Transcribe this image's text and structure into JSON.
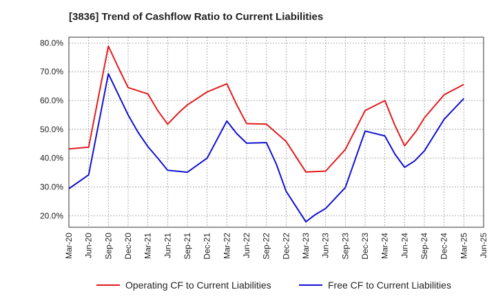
{
  "chart_data": {
    "type": "line",
    "title": "[3836]  Trend of Cashflow Ratio to Current Liabilities",
    "x_ticks": [
      "Mar-20",
      "Jun-20",
      "Sep-20",
      "Dec-20",
      "Mar-21",
      "Jun-21",
      "Sep-21",
      "Dec-21",
      "Mar-22",
      "Jun-22",
      "Sep-22",
      "Dec-22",
      "Mar-23",
      "Jun-23",
      "Sep-23",
      "Dec-23",
      "Mar-24",
      "Jun-24",
      "Sep-24",
      "Dec-24",
      "Mar-25",
      "Jun-25"
    ],
    "y_ticks": [
      "20.0%",
      "30.0%",
      "40.0%",
      "50.0%",
      "60.0%",
      "70.0%",
      "80.0%"
    ],
    "ylim": [
      16,
      82
    ],
    "grid": true,
    "legend_position": "bottom",
    "series": [
      {
        "name": "Operating CF to Current Liabilities",
        "color": "#e31a1c",
        "values": [
          [
            0,
            43.2
          ],
          [
            1,
            43.8
          ],
          [
            2,
            78.9
          ],
          [
            2.5,
            71.5
          ],
          [
            3,
            64.5
          ],
          [
            4,
            62.3
          ],
          [
            4.5,
            56.5
          ],
          [
            5,
            51.8
          ],
          [
            5.6,
            56.0
          ],
          [
            6,
            58.5
          ],
          [
            7,
            63.0
          ],
          [
            8,
            65.8
          ],
          [
            8.5,
            58.5
          ],
          [
            9,
            52.0
          ],
          [
            10,
            51.8
          ],
          [
            11,
            45.8
          ],
          [
            12,
            35.2
          ],
          [
            13,
            35.5
          ],
          [
            14,
            43.0
          ],
          [
            15,
            56.5
          ],
          [
            16,
            60.0
          ],
          [
            16.5,
            51.5
          ],
          [
            17,
            44.3
          ],
          [
            17.6,
            49.5
          ],
          [
            18,
            54.0
          ],
          [
            19,
            62.0
          ],
          [
            20,
            65.6
          ]
        ]
      },
      {
        "name": "Free CF to Current Liabilities",
        "color": "#1010d0",
        "values": [
          [
            0,
            29.4
          ],
          [
            1,
            34.2
          ],
          [
            2,
            69.3
          ],
          [
            3,
            55.0
          ],
          [
            3.5,
            49.0
          ],
          [
            4,
            44.0
          ],
          [
            4.5,
            40.0
          ],
          [
            5,
            35.8
          ],
          [
            6,
            35.1
          ],
          [
            7,
            40.0
          ],
          [
            8,
            52.9
          ],
          [
            8.5,
            48.5
          ],
          [
            9,
            45.2
          ],
          [
            10,
            45.4
          ],
          [
            10.5,
            38.0
          ],
          [
            11,
            28.5
          ],
          [
            12,
            17.9
          ],
          [
            12.5,
            20.5
          ],
          [
            13,
            22.5
          ],
          [
            14,
            29.8
          ],
          [
            15,
            49.4
          ],
          [
            16,
            47.7
          ],
          [
            16.5,
            41.5
          ],
          [
            17,
            36.8
          ],
          [
            17.5,
            39.0
          ],
          [
            18,
            42.5
          ],
          [
            19,
            53.5
          ],
          [
            20,
            60.7
          ]
        ]
      }
    ]
  }
}
